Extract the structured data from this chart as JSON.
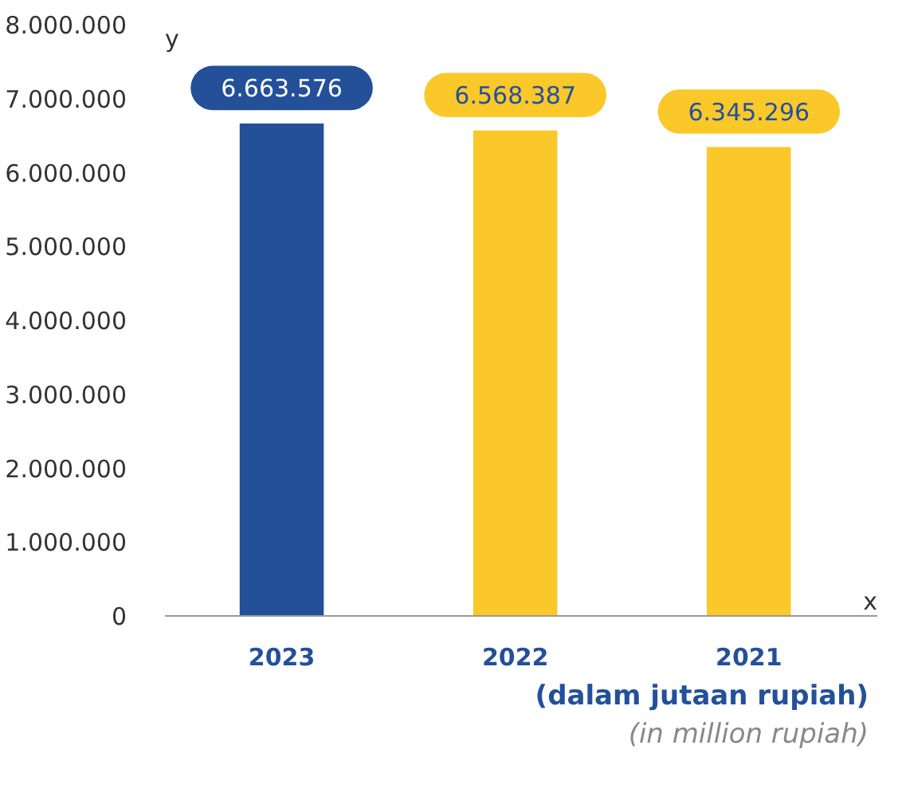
{
  "chart_data": {
    "type": "bar",
    "xlabel": "x",
    "ylabel": "y",
    "categories": [
      "2023",
      "2022",
      "2021"
    ],
    "values": [
      6663576,
      6568387,
      6345296
    ],
    "colors": [
      "#24509a",
      "#fbc82a",
      "#fbc82a"
    ],
    "value_labels": [
      "6.663.576",
      "6.568.387",
      "6.345.296"
    ],
    "ylim": [
      0,
      8000000
    ],
    "yticks": [
      {
        "value": 0,
        "label": "0"
      },
      {
        "value": 1000000,
        "label": "1.000.000"
      },
      {
        "value": 2000000,
        "label": "2.000.000"
      },
      {
        "value": 3000000,
        "label": "3.000.000"
      },
      {
        "value": 4000000,
        "label": "4.000.000"
      },
      {
        "value": 5000000,
        "label": "5.000.000"
      },
      {
        "value": 6000000,
        "label": "6.000.000"
      },
      {
        "value": 7000000,
        "label": "7.000.000"
      },
      {
        "value": 8000000,
        "label": "8.000.000"
      }
    ],
    "annotations": [
      "(dalam jutaan rupiah)",
      "(in million rupiah)"
    ]
  }
}
